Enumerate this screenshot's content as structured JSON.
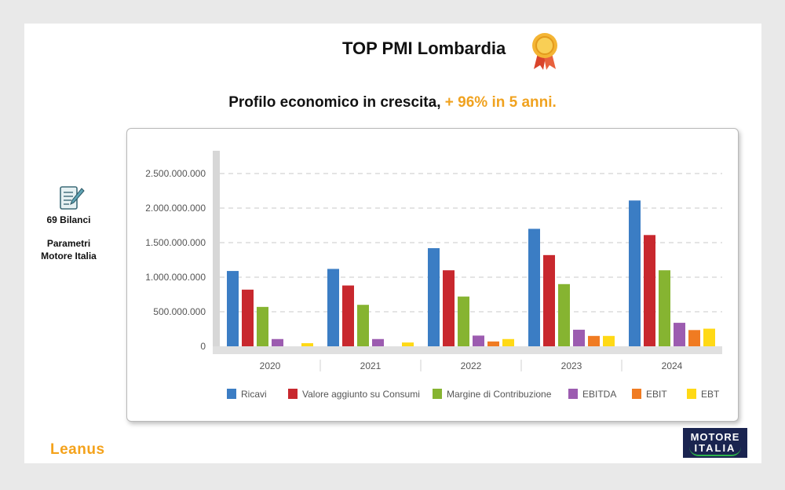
{
  "header": {
    "title": "TOP PMI Lombardia",
    "subtitle_main": "Profilo economico in crescita, ",
    "subtitle_accent": "+ 96% in 5 anni."
  },
  "sidebar": {
    "icon": "document-pencil-icon",
    "count_label": "69 Bilanci",
    "params_line1": "Parametri",
    "params_line2": "Motore Italia"
  },
  "logos": {
    "left": "Leanus",
    "right_line1": "MOTORE",
    "right_line2": "ITALIA"
  },
  "colors": {
    "accent": "#f0a21f",
    "Ricavi": "#3b7dc4",
    "Valore": "#c8282e",
    "Margine": "#86b431",
    "EBITDA": "#9c5cb0",
    "EBIT": "#f07b22",
    "EBT": "#ffd915"
  },
  "chart_data": {
    "type": "bar",
    "title": "",
    "xlabel": "",
    "ylabel": "",
    "categories": [
      "2020",
      "2021",
      "2022",
      "2023",
      "2024"
    ],
    "ylim": [
      0,
      2500000000
    ],
    "yticks": [
      0,
      500000000,
      1000000000,
      1500000000,
      2000000000,
      2500000000
    ],
    "ytick_labels": [
      "0",
      "500.000.000",
      "1.000.000.000",
      "1.500.000.000",
      "2.000.000.000",
      "2.500.000.000"
    ],
    "grid": true,
    "legend_position": "bottom",
    "series": [
      {
        "name": "Ricavi",
        "color": "#3b7dc4",
        "values": [
          1090000000,
          1120000000,
          1420000000,
          1700000000,
          2110000000
        ]
      },
      {
        "name": "Valore aggiunto su Consumi",
        "color": "#c8282e",
        "values": [
          820000000,
          880000000,
          1100000000,
          1320000000,
          1610000000
        ]
      },
      {
        "name": "Margine di Contribuzione",
        "color": "#86b431",
        "values": [
          570000000,
          600000000,
          720000000,
          900000000,
          1100000000
        ]
      },
      {
        "name": "EBITDA",
        "color": "#9c5cb0",
        "values": [
          105000000,
          105000000,
          155000000,
          240000000,
          340000000
        ]
      },
      {
        "name": "EBIT",
        "color": "#f07b22",
        "values": [
          0,
          0,
          70000000,
          150000000,
          235000000
        ]
      },
      {
        "name": "EBT",
        "color": "#ffd915",
        "values": [
          45000000,
          55000000,
          105000000,
          150000000,
          255000000
        ]
      }
    ]
  }
}
